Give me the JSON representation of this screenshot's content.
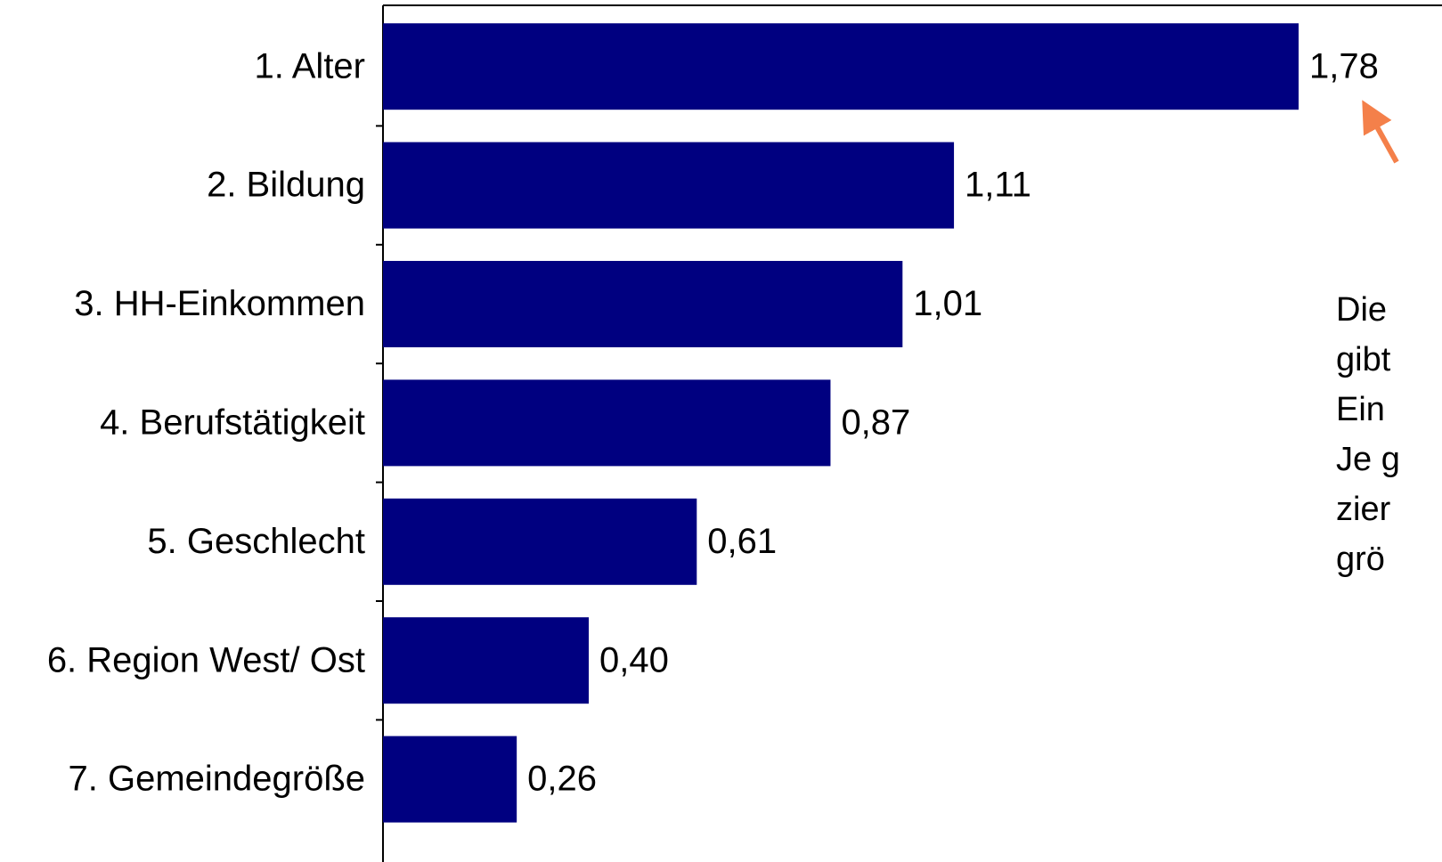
{
  "chart_data": {
    "type": "barh",
    "categories": [
      "1. Alter",
      "2. Bildung",
      "3. HH-Einkommen",
      "4. Berufstätigkeit",
      "5. Geschlecht",
      "6. Region West/ Ost",
      "7. Gemeindegröße"
    ],
    "values": [
      1.78,
      1.11,
      1.01,
      0.87,
      0.61,
      0.4,
      0.26
    ],
    "value_labels": [
      "1,78",
      "1,11",
      "1,01",
      "0,87",
      "0,61",
      "0,40",
      "0,26"
    ],
    "color": "#000080",
    "annotation": [
      "Die",
      "gibt",
      "Ein",
      "Je g",
      "zier",
      "grö"
    ],
    "annotation_color": "#f4804a"
  }
}
